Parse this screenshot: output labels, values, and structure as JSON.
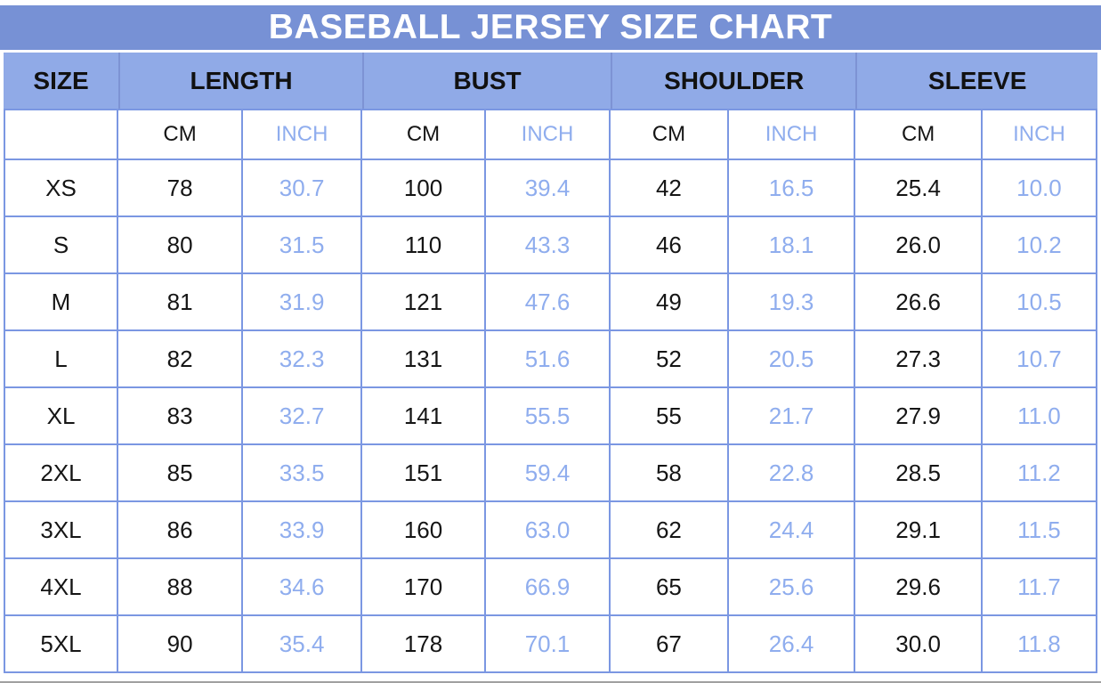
{
  "title": "BASEBALL JERSEY SIZE CHART",
  "header": {
    "size": "SIZE",
    "groups": [
      "LENGTH",
      "BUST",
      "SHOULDER",
      "SLEEVE"
    ],
    "cm": "CM",
    "inch": "INCH"
  },
  "chart_data": {
    "type": "table",
    "title": "BASEBALL JERSEY SIZE CHART",
    "column_groups": [
      "SIZE",
      "LENGTH",
      "BUST",
      "SHOULDER",
      "SLEEVE"
    ],
    "columns": [
      "SIZE",
      "LENGTH CM",
      "LENGTH INCH",
      "BUST CM",
      "BUST INCH",
      "SHOULDER CM",
      "SHOULDER INCH",
      "SLEEVE CM",
      "SLEEVE INCH"
    ],
    "rows": [
      [
        "XS",
        "78",
        "30.7",
        "100",
        "39.4",
        "42",
        "16.5",
        "25.4",
        "10.0"
      ],
      [
        "S",
        "80",
        "31.5",
        "110",
        "43.3",
        "46",
        "18.1",
        "26.0",
        "10.2"
      ],
      [
        "M",
        "81",
        "31.9",
        "121",
        "47.6",
        "49",
        "19.3",
        "26.6",
        "10.5"
      ],
      [
        "L",
        "82",
        "32.3",
        "131",
        "51.6",
        "52",
        "20.5",
        "27.3",
        "10.7"
      ],
      [
        "XL",
        "83",
        "32.7",
        "141",
        "55.5",
        "55",
        "21.7",
        "27.9",
        "11.0"
      ],
      [
        "2XL",
        "85",
        "33.5",
        "151",
        "59.4",
        "58",
        "22.8",
        "28.5",
        "11.2"
      ],
      [
        "3XL",
        "86",
        "33.9",
        "160",
        "63.0",
        "62",
        "24.4",
        "29.1",
        "11.5"
      ],
      [
        "4XL",
        "88",
        "34.6",
        "170",
        "66.9",
        "65",
        "25.6",
        "29.6",
        "11.7"
      ],
      [
        "5XL",
        "90",
        "35.4",
        "178",
        "70.1",
        "67",
        "26.4",
        "30.0",
        "11.8"
      ]
    ]
  },
  "colors": {
    "title_bar_bg": "#7791d5",
    "header_bg": "#90aae7",
    "header_divider": "#7d93d4",
    "body_border": "#7b97e2",
    "inch_text": "#8fadee",
    "cm_text": "#151515",
    "title_text": "#ffffff",
    "bottom_line": "#a0a0a0"
  }
}
